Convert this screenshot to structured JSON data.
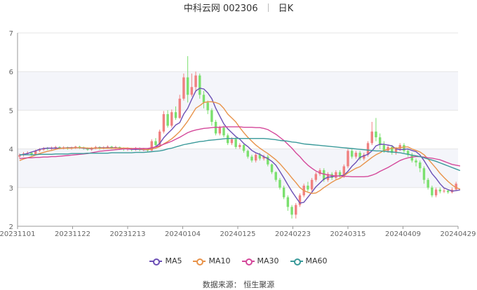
{
  "header": {
    "stock": "中科云网 002306",
    "period": "日K"
  },
  "source_text": "数据来源：  恒生聚源",
  "colors": {
    "up": "#f08080",
    "down": "#7be06e",
    "band": "#f4f5fa",
    "grid": "#e6e6e6",
    "axis": "#666666"
  },
  "chart_data": {
    "type": "candlestick",
    "title": "中科云网 002306 日K",
    "ylim": [
      2,
      7
    ],
    "yticks": [
      "2",
      "3",
      "4",
      "5",
      "6",
      "7"
    ],
    "xlabels": [
      "20231101",
      "20231122",
      "20231213",
      "20240104",
      "20240125",
      "20240223",
      "20240315",
      "20240409",
      "20240429"
    ],
    "ohlc": [
      [
        3.8,
        3.84,
        3.75,
        3.88
      ],
      [
        3.84,
        3.88,
        3.8,
        3.92
      ],
      [
        3.88,
        3.9,
        3.84,
        3.94
      ],
      [
        3.9,
        3.86,
        3.82,
        3.93
      ],
      [
        3.86,
        3.95,
        3.84,
        3.98
      ],
      [
        3.95,
        3.98,
        3.92,
        4.02
      ],
      [
        3.98,
        4.02,
        3.95,
        4.05
      ],
      [
        4.02,
        4,
        3.97,
        4.05
      ],
      [
        4,
        4.03,
        3.97,
        4.06
      ],
      [
        4.03,
        4.05,
        4,
        4.08
      ],
      [
        4.05,
        4.02,
        3.99,
        4.07
      ],
      [
        4.02,
        4.04,
        3.99,
        4.07
      ],
      [
        4.04,
        4.01,
        3.98,
        4.06
      ],
      [
        4.01,
        4.03,
        3.98,
        4.06
      ],
      [
        4.03,
        4.06,
        4,
        4.08
      ],
      [
        4.06,
        4.04,
        4,
        4.08
      ],
      [
        4.04,
        4.02,
        3.98,
        4.06
      ],
      [
        4.02,
        3.98,
        3.95,
        4.04
      ],
      [
        3.98,
        4.02,
        3.95,
        4.05
      ],
      [
        4.02,
        4.05,
        3.99,
        4.08
      ],
      [
        4.05,
        4.02,
        3.98,
        4.07
      ],
      [
        4.02,
        4.04,
        3.99,
        4.07
      ],
      [
        4.04,
        4.06,
        4.01,
        4.09
      ],
      [
        4.06,
        4.03,
        4,
        4.08
      ],
      [
        4.03,
        4.05,
        4,
        4.08
      ],
      [
        4.05,
        4.02,
        3.98,
        4.06
      ],
      [
        4.02,
        3.99,
        3.95,
        4.04
      ],
      [
        3.99,
        4.01,
        3.95,
        4.04
      ],
      [
        4.01,
        3.98,
        3.94,
        4.03
      ],
      [
        3.98,
        4.02,
        3.95,
        4.05
      ],
      [
        4.02,
        3.98,
        3.94,
        4.04
      ],
      [
        3.98,
        4,
        3.94,
        4.03
      ],
      [
        4,
        3.96,
        3.92,
        4.02
      ],
      [
        3.96,
        4.2,
        3.94,
        4.25
      ],
      [
        4.2,
        4.1,
        4.05,
        4.28
      ],
      [
        4.1,
        4.45,
        4.08,
        4.5
      ],
      [
        4.45,
        4.9,
        4.4,
        4.98
      ],
      [
        4.9,
        4.6,
        4.55,
        5
      ],
      [
        4.6,
        4.95,
        4.55,
        5.02
      ],
      [
        4.95,
        4.8,
        4.75,
        5.1
      ],
      [
        4.8,
        5.3,
        4.78,
        5.4
      ],
      [
        5.3,
        5.85,
        5.25,
        5.95
      ],
      [
        5.85,
        5.4,
        5.2,
        6.4
      ],
      [
        5.4,
        5.6,
        5.35,
        5.95
      ],
      [
        5.6,
        5.9,
        5.5,
        6
      ],
      [
        5.9,
        5.4,
        5.3,
        5.95
      ],
      [
        5.4,
        5.2,
        5.05,
        5.5
      ],
      [
        5.2,
        5,
        4.9,
        5.25
      ],
      [
        5,
        4.7,
        4.6,
        5.05
      ],
      [
        4.7,
        4.4,
        4.35,
        4.75
      ],
      [
        4.4,
        4.55,
        4.35,
        4.6
      ],
      [
        4.55,
        4.35,
        4.3,
        4.6
      ],
      [
        4.35,
        4.15,
        4.1,
        4.4
      ],
      [
        4.15,
        4.25,
        4.1,
        4.3
      ],
      [
        4.25,
        4.05,
        4,
        4.3
      ],
      [
        4.05,
        4.1,
        4,
        4.15
      ],
      [
        4.1,
        3.95,
        3.9,
        4.12
      ],
      [
        3.95,
        3.8,
        3.75,
        3.98
      ],
      [
        3.8,
        3.7,
        3.65,
        3.85
      ],
      [
        3.7,
        3.85,
        3.65,
        3.9
      ],
      [
        3.85,
        3.75,
        3.7,
        3.9
      ],
      [
        3.75,
        3.8,
        3.7,
        3.85
      ],
      [
        3.8,
        3.6,
        3.55,
        3.85
      ],
      [
        3.6,
        3.4,
        3.35,
        3.62
      ],
      [
        3.4,
        3.2,
        3.15,
        3.42
      ],
      [
        3.2,
        3,
        2.95,
        3.25
      ],
      [
        3,
        2.75,
        2.7,
        3.05
      ],
      [
        2.75,
        2.5,
        2.4,
        2.8
      ],
      [
        2.5,
        2.3,
        2.2,
        2.55
      ],
      [
        2.3,
        2.55,
        2.2,
        2.6
      ],
      [
        2.55,
        2.8,
        2.5,
        2.85
      ],
      [
        2.8,
        3.05,
        2.75,
        3.1
      ],
      [
        3.05,
        2.95,
        2.9,
        3.15
      ],
      [
        2.95,
        3.2,
        2.9,
        3.25
      ],
      [
        3.2,
        3.35,
        3.15,
        3.4
      ],
      [
        3.35,
        3.45,
        3.3,
        3.5
      ],
      [
        3.45,
        3.2,
        3.15,
        3.5
      ],
      [
        3.2,
        3.35,
        3.15,
        3.4
      ],
      [
        3.35,
        3.25,
        3.2,
        3.4
      ],
      [
        3.25,
        3.4,
        3.2,
        3.45
      ],
      [
        3.4,
        3.3,
        3.25,
        3.45
      ],
      [
        3.3,
        3.55,
        3.25,
        3.6
      ],
      [
        3.55,
        3.95,
        3.5,
        4
      ],
      [
        3.95,
        3.8,
        3.75,
        4
      ],
      [
        3.8,
        3.9,
        3.75,
        3.95
      ],
      [
        3.9,
        3.75,
        3.7,
        3.95
      ],
      [
        3.75,
        3.85,
        3.7,
        3.9
      ],
      [
        3.85,
        4.15,
        3.8,
        4.2
      ],
      [
        4.15,
        4.45,
        4.1,
        4.7
      ],
      [
        4.45,
        4.3,
        4.2,
        4.8
      ],
      [
        4.3,
        4.1,
        4,
        4.4
      ],
      [
        4.1,
        3.95,
        3.9,
        4.2
      ],
      [
        3.95,
        4.05,
        3.9,
        4.1
      ],
      [
        4.05,
        3.9,
        3.85,
        4.1
      ],
      [
        3.9,
        4,
        3.85,
        4.05
      ],
      [
        4,
        4.1,
        3.95,
        4.15
      ],
      [
        4.1,
        3.95,
        3.9,
        4.15
      ],
      [
        3.95,
        3.85,
        3.8,
        4
      ],
      [
        3.85,
        3.7,
        3.65,
        3.9
      ],
      [
        3.7,
        3.65,
        3.55,
        3.75
      ],
      [
        3.65,
        3.5,
        3.4,
        3.7
      ],
      [
        3.5,
        3.2,
        3.1,
        3.55
      ],
      [
        3.2,
        3,
        2.95,
        3.25
      ],
      [
        3,
        2.8,
        2.75,
        3.05
      ],
      [
        2.8,
        2.95,
        2.75,
        3
      ],
      [
        2.95,
        2.9,
        2.85,
        3
      ],
      [
        2.9,
        2.92,
        2.86,
        2.98
      ],
      [
        2.92,
        2.88,
        2.84,
        2.96
      ],
      [
        2.88,
        2.95,
        2.85,
        3
      ],
      [
        2.95,
        3.1,
        2.92,
        3.15
      ]
    ],
    "series": [
      {
        "name": "MA5",
        "color": "#6b4fb5",
        "values": [
          3.84,
          3.86,
          3.88,
          3.92,
          3.95,
          3.99,
          4.01,
          4.02,
          4.02,
          4.02,
          4.02,
          4.02,
          4.03,
          4.03,
          4.03,
          4.03,
          4.02,
          4.01,
          4.01,
          4.02,
          4.03,
          4.03,
          4.03,
          4.03,
          4.03,
          4.02,
          4.01,
          4,
          3.99,
          3.99,
          3.99,
          3.98,
          3.98,
          4.02,
          4.06,
          4.14,
          4.29,
          4.4,
          4.5,
          4.62,
          4.68,
          4.9,
          5.05,
          5.28,
          5.5,
          5.57,
          5.55,
          5.45,
          5.3,
          5.05,
          4.85,
          4.65,
          4.52,
          4.42,
          4.32,
          4.25,
          4.14,
          4.06,
          3.96,
          3.9,
          3.86,
          3.8,
          3.75,
          3.68,
          3.58,
          3.42,
          3.25,
          3.07,
          2.9,
          2.75,
          2.6,
          2.62,
          2.75,
          2.88,
          3.02,
          3.12,
          3.22,
          3.27,
          3.28,
          3.3,
          3.3,
          3.32,
          3.42,
          3.55,
          3.65,
          3.78,
          3.82,
          3.86,
          3.95,
          4.08,
          4.12,
          4.12,
          4.1,
          4.08,
          4,
          3.98,
          3.99,
          4,
          3.96,
          3.93,
          3.84,
          3.7,
          3.53,
          3.36,
          3.24,
          3.1,
          2.99,
          2.95,
          2.91,
          2.92,
          2.94
        ]
      },
      {
        "name": "MA10",
        "color": "#e8934a",
        "values": [
          3.7,
          3.74,
          3.77,
          3.8,
          3.84,
          3.88,
          3.91,
          3.94,
          3.96,
          3.99,
          4.01,
          4.02,
          4.02,
          4.02,
          4.03,
          4.03,
          4.03,
          4.02,
          4.02,
          4.02,
          4.02,
          4.02,
          4.02,
          4.02,
          4.02,
          4.02,
          4.02,
          4.02,
          4.01,
          4.01,
          4,
          3.99,
          3.98,
          4,
          4.02,
          4.06,
          4.13,
          4.19,
          4.26,
          4.35,
          4.45,
          4.58,
          4.72,
          4.88,
          5.05,
          5.12,
          5.2,
          5.22,
          5.22,
          5.2,
          5.16,
          5.05,
          4.9,
          4.8,
          4.7,
          4.55,
          4.42,
          4.3,
          4.2,
          4.1,
          4.02,
          3.95,
          3.88,
          3.8,
          3.72,
          3.62,
          3.5,
          3.38,
          3.25,
          3.13,
          3,
          2.92,
          2.88,
          2.85,
          2.86,
          2.92,
          3,
          3.07,
          3.14,
          3.2,
          3.24,
          3.3,
          3.38,
          3.44,
          3.5,
          3.54,
          3.62,
          3.7,
          3.78,
          3.85,
          3.9,
          3.96,
          3.99,
          4.02,
          4.02,
          4.03,
          4.05,
          4.05,
          4,
          3.96,
          3.92,
          3.85,
          3.74,
          3.62,
          3.5,
          3.37,
          3.26,
          3.16,
          3.07,
          3,
          2.96
        ]
      },
      {
        "name": "MA30",
        "color": "#d4489a",
        "values": [
          3.75,
          3.76,
          3.77,
          3.77,
          3.78,
          3.78,
          3.79,
          3.79,
          3.8,
          3.8,
          3.81,
          3.82,
          3.83,
          3.84,
          3.85,
          3.86,
          3.87,
          3.88,
          3.9,
          3.92,
          3.94,
          3.95,
          3.96,
          3.97,
          3.98,
          3.99,
          4,
          4,
          4,
          4.01,
          4.01,
          4.01,
          4.01,
          4.03,
          4.05,
          4.08,
          4.12,
          4.16,
          4.2,
          4.25,
          4.3,
          4.36,
          4.42,
          4.46,
          4.49,
          4.51,
          4.53,
          4.54,
          4.55,
          4.56,
          4.56,
          4.57,
          4.57,
          4.57,
          4.57,
          4.57,
          4.56,
          4.56,
          4.56,
          4.55,
          4.55,
          4.53,
          4.5,
          4.44,
          4.38,
          4.3,
          4.22,
          4.12,
          4.02,
          3.9,
          3.8,
          3.68,
          3.58,
          3.5,
          3.43,
          3.38,
          3.35,
          3.33,
          3.31,
          3.3,
          3.3,
          3.29,
          3.29,
          3.28,
          3.28,
          3.28,
          3.28,
          3.29,
          3.32,
          3.36,
          3.42,
          3.47,
          3.52,
          3.58,
          3.64,
          3.7,
          3.74,
          3.77,
          3.79,
          3.8,
          3.8,
          3.79,
          3.77,
          3.76,
          3.74,
          3.72,
          3.68,
          3.64,
          3.6,
          3.58,
          3.56
        ]
      },
      {
        "name": "MA60",
        "color": "#3a9a9a",
        "values": [
          3.85,
          3.85,
          3.85,
          3.85,
          3.85,
          3.86,
          3.86,
          3.86,
          3.86,
          3.87,
          3.87,
          3.87,
          3.87,
          3.88,
          3.88,
          3.88,
          3.88,
          3.89,
          3.89,
          3.89,
          3.89,
          3.89,
          3.89,
          3.9,
          3.9,
          3.9,
          3.9,
          3.9,
          3.9,
          3.91,
          3.91,
          3.91,
          3.92,
          3.93,
          3.94,
          3.95,
          3.97,
          4,
          4.02,
          4.05,
          4.08,
          4.11,
          4.13,
          4.15,
          4.17,
          4.19,
          4.2,
          4.22,
          4.23,
          4.24,
          4.25,
          4.26,
          4.27,
          4.27,
          4.27,
          4.27,
          4.27,
          4.27,
          4.27,
          4.27,
          4.27,
          4.27,
          4.26,
          4.25,
          4.24,
          4.22,
          4.21,
          4.2,
          4.18,
          4.17,
          4.15,
          4.13,
          4.12,
          4.11,
          4.1,
          4.09,
          4.08,
          4.07,
          4.06,
          4.05,
          4.04,
          4.03,
          4.02,
          4.01,
          4,
          3.99,
          3.98,
          3.97,
          3.96,
          3.95,
          3.95,
          3.94,
          3.93,
          3.92,
          3.91,
          3.9,
          3.88,
          3.86,
          3.84,
          3.82,
          3.8,
          3.77,
          3.74,
          3.71,
          3.68,
          3.64,
          3.6,
          3.56,
          3.52,
          3.48,
          3.44
        ]
      }
    ]
  }
}
